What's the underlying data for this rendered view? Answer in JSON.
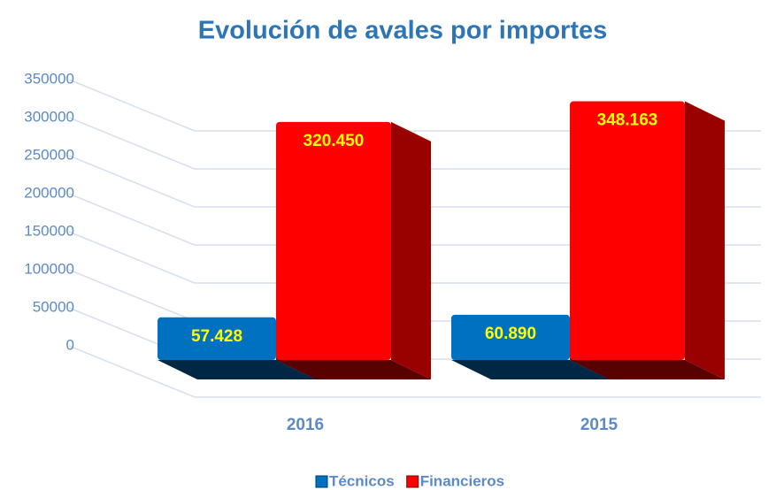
{
  "chart_data": {
    "type": "bar3d",
    "title": "Evolución de avales por importes",
    "categories": [
      "2016",
      "2015"
    ],
    "series": [
      {
        "name": "Técnicos",
        "color": "#0070c0",
        "values": [
          57428,
          60890
        ],
        "value_labels": [
          "57.428",
          "60.890"
        ]
      },
      {
        "name": "Financieros",
        "color": "#ff0000",
        "values": [
          320450,
          348163
        ],
        "value_labels": [
          "320.450",
          "348.163"
        ]
      }
    ],
    "ylim": [
      0,
      350000
    ],
    "yticks": [
      0,
      50000,
      100000,
      150000,
      200000,
      250000,
      300000,
      350000
    ],
    "grid": true,
    "legend": "bottom"
  }
}
